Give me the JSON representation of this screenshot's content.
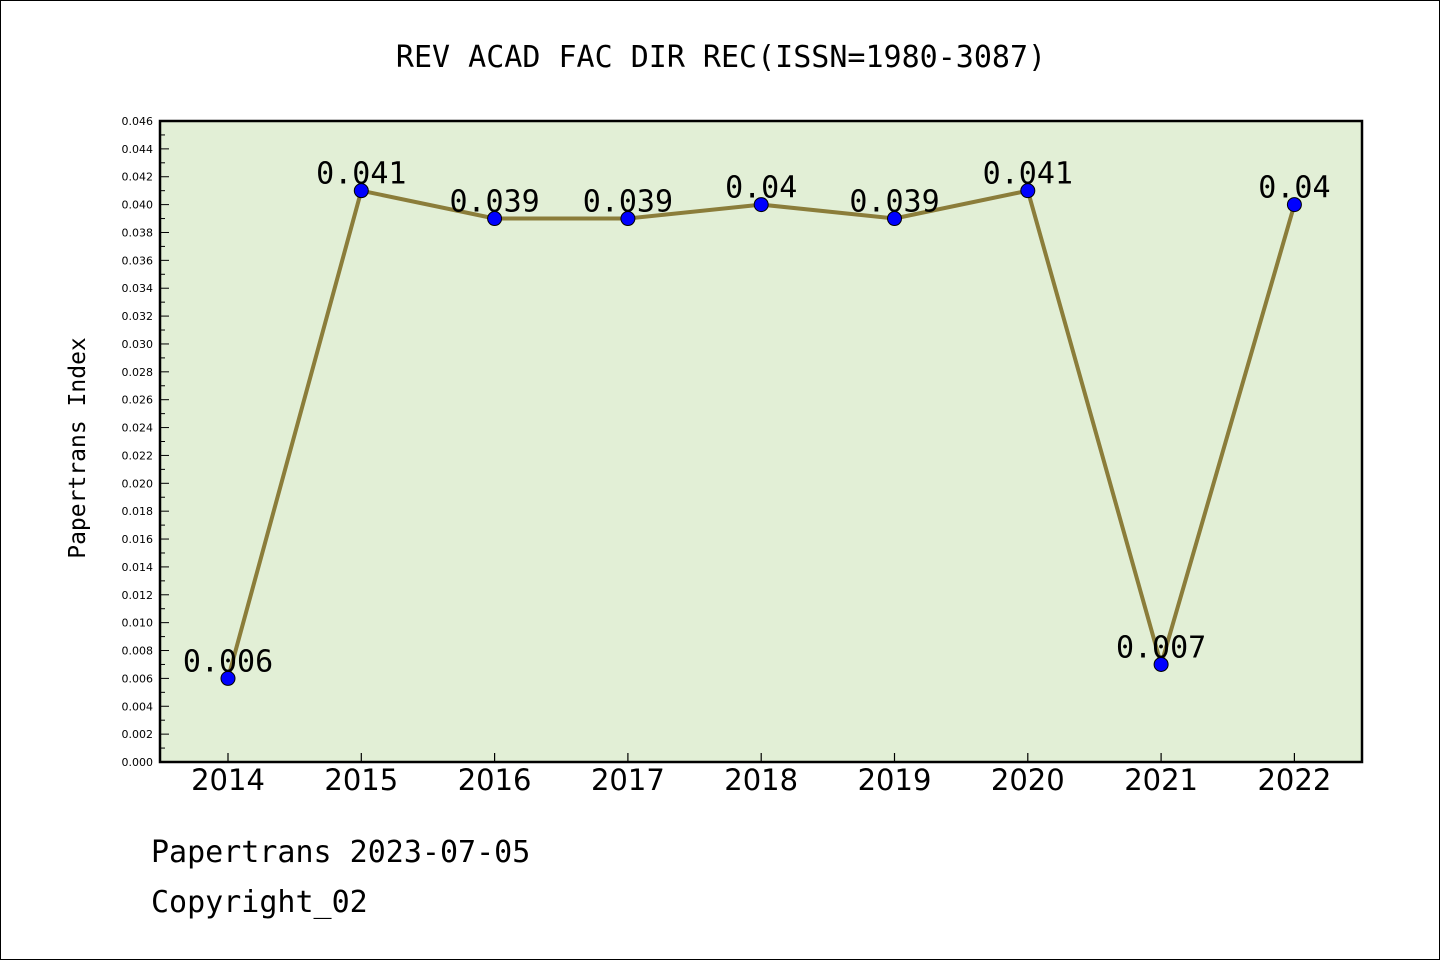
{
  "chart_data": {
    "type": "line",
    "title": "REV ACAD FAC DIR REC(ISSN=1980-3087)",
    "xlabel": "",
    "ylabel": "Papertrans Index",
    "categories": [
      "2014",
      "2015",
      "2016",
      "2017",
      "2018",
      "2019",
      "2020",
      "2021",
      "2022"
    ],
    "series": [
      {
        "values": [
          0.006,
          0.041,
          0.039,
          0.039,
          0.04,
          0.039,
          0.041,
          0.007,
          0.04
        ],
        "labels": [
          "0.006",
          "0.041",
          "0.039",
          "0.039",
          "0.04",
          "0.039",
          "0.041",
          "0.007",
          "0.04"
        ]
      }
    ],
    "ylim": [
      0,
      0.046
    ],
    "ytick_step": 0.002,
    "grid": false,
    "legend": "none",
    "colors": {
      "plot_background": "#e2efd6",
      "line": "#8b7d3a",
      "marker": "#0000ff"
    }
  },
  "footer": {
    "line1": "Papertrans 2023-07-05",
    "line2": "Copyright_02"
  }
}
